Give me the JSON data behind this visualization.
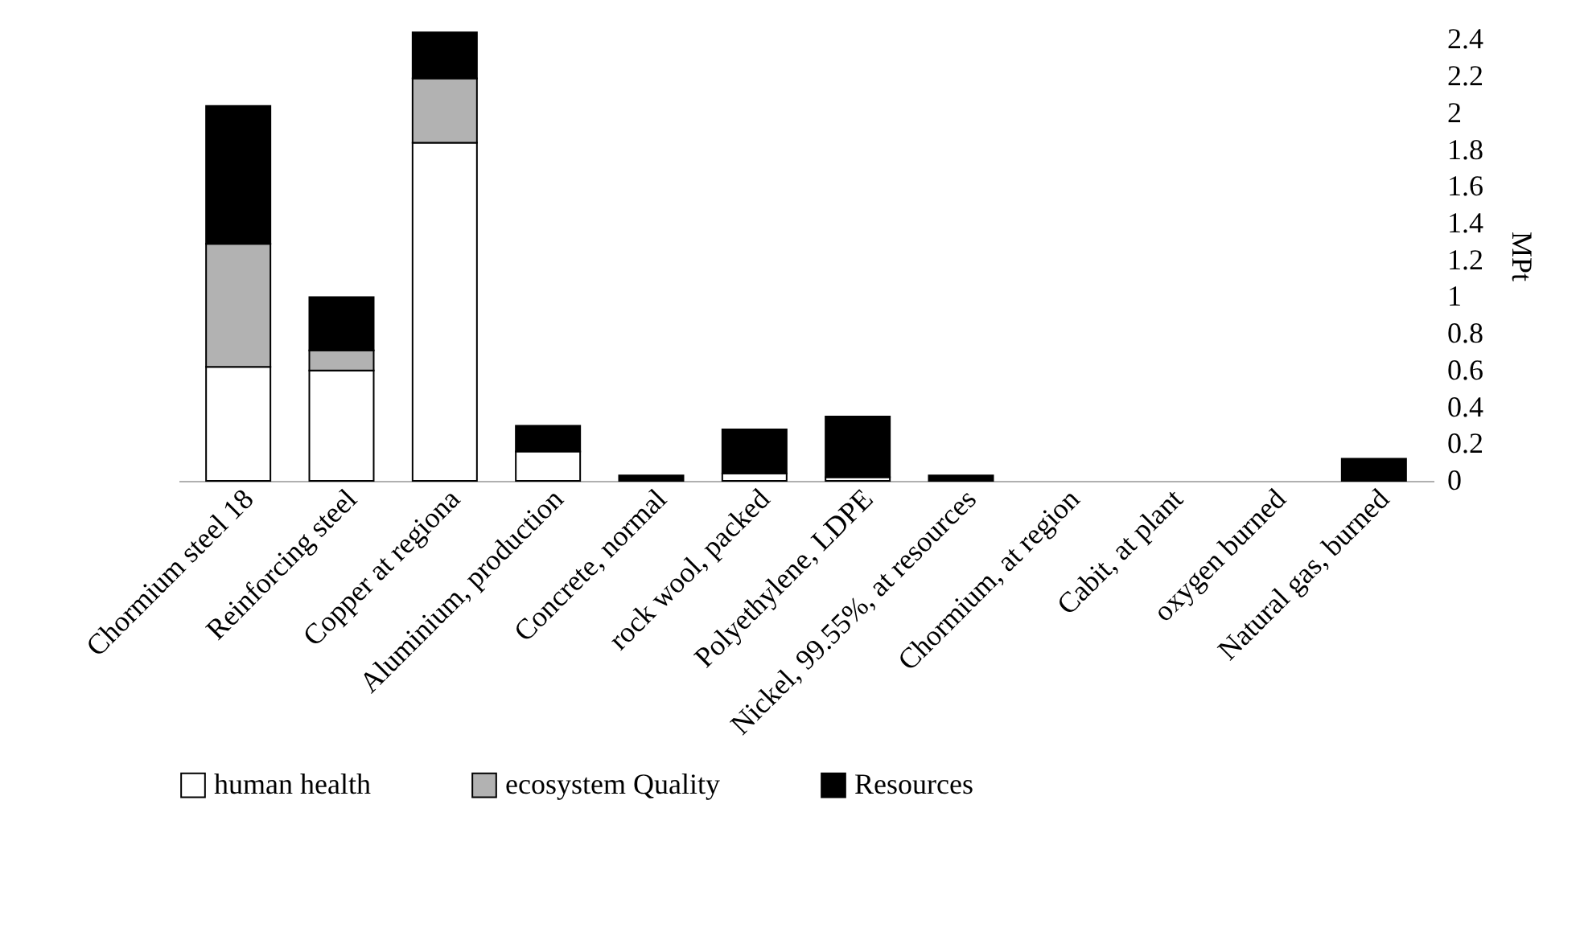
{
  "chart_data": {
    "type": "bar",
    "stacked": true,
    "ylabel": "MPt",
    "categories": [
      "Chormium steel 18",
      "Reinforcing steel",
      "Copper at regiona",
      "Aluminium, production",
      "Concrete, normal",
      "rock wool, packed",
      "Polyethylene, LDPE",
      "Nickel, 99.55%, at resources",
      "Chormium, at region",
      "Cabit, at plant",
      "oxygen burned",
      "Natural gas, burned"
    ],
    "series": [
      {
        "name": "human health",
        "color": "#ffffff",
        "values": [
          0.62,
          0.6,
          1.84,
          0.16,
          null,
          0.04,
          0.02,
          null,
          null,
          null,
          null,
          null
        ]
      },
      {
        "name": "ecosystem Quality",
        "color": "#b2b2b2",
        "values": [
          0.67,
          0.11,
          0.35,
          null,
          null,
          null,
          null,
          null,
          null,
          null,
          null,
          null
        ]
      },
      {
        "name": "Resources",
        "color": "#000000",
        "values": [
          0.75,
          0.29,
          0.25,
          0.14,
          0.03,
          0.24,
          0.33,
          0.03,
          null,
          null,
          null,
          0.12
        ]
      }
    ],
    "ylim": [
      0,
      2.45
    ],
    "yticks": [
      0,
      0.2,
      0.4,
      0.6,
      0.8,
      1,
      1.2,
      1.4,
      1.6,
      1.8,
      2,
      2.2,
      2.4
    ],
    "grid": false,
    "legend": "bottom"
  }
}
